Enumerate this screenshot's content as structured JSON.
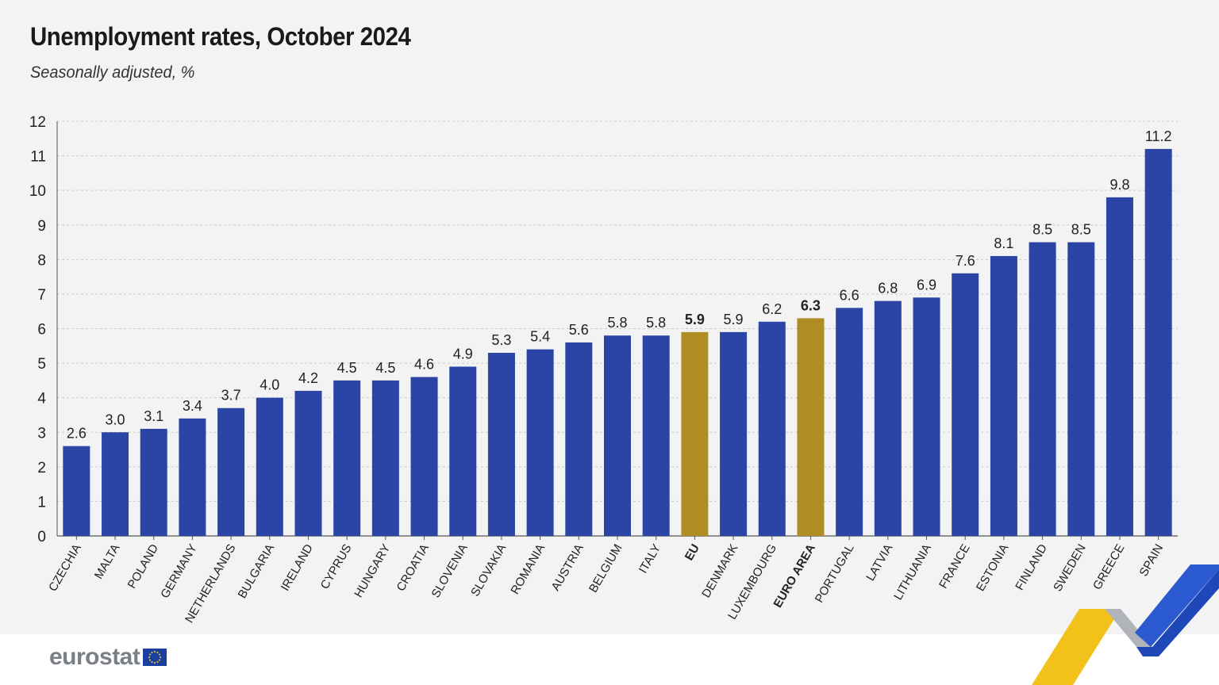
{
  "title": "Unemployment rates, October 2024",
  "subtitle": "Seasonally adjusted, %",
  "logo_text": "eurostat",
  "colors": {
    "bar": "#2a45a5",
    "highlight": "#b08d22",
    "grid": "#cccccc",
    "axis": "#555555",
    "text": "#222222"
  },
  "chart_data": {
    "type": "bar",
    "title": "Unemployment rates, October 2024",
    "subtitle": "Seasonally adjusted, %",
    "xlabel": "",
    "ylabel": "",
    "ylim": [
      0,
      12
    ],
    "yticks": [
      0,
      1,
      2,
      3,
      4,
      5,
      6,
      7,
      8,
      9,
      10,
      11,
      12
    ],
    "grid": true,
    "categories": [
      "CZECHIA",
      "MALTA",
      "POLAND",
      "GERMANY",
      "NETHERLANDS",
      "BULGARIA",
      "IRELAND",
      "CYPRUS",
      "HUNGARY",
      "CROATIA",
      "SLOVENIA",
      "SLOVAKIA",
      "ROMANIA",
      "AUSTRIA",
      "BELGIUM",
      "ITALY",
      "EU",
      "DENMARK",
      "LUXEMBOURG",
      "EURO AREA",
      "PORTUGAL",
      "LATVIA",
      "LITHUANIA",
      "FRANCE",
      "ESTONIA",
      "FINLAND",
      "SWEDEN",
      "GREECE",
      "SPAIN"
    ],
    "values": [
      2.6,
      3.0,
      3.1,
      3.4,
      3.7,
      4.0,
      4.2,
      4.5,
      4.5,
      4.6,
      4.9,
      5.3,
      5.4,
      5.6,
      5.8,
      5.8,
      5.9,
      5.9,
      6.2,
      6.3,
      6.6,
      6.8,
      6.9,
      7.6,
      8.1,
      8.5,
      8.5,
      9.8,
      11.2
    ],
    "value_labels": [
      "2.6",
      "3.0",
      "3.1",
      "3.4",
      "3.7",
      "4.0",
      "4.2",
      "4.5",
      "4.5",
      "4.6",
      "4.9",
      "5.3",
      "5.4",
      "5.6",
      "5.8",
      "5.8",
      "5.9",
      "5.9",
      "6.2",
      "6.3",
      "6.6",
      "6.8",
      "6.9",
      "7.6",
      "8.1",
      "8.5",
      "8.5",
      "9.8",
      "11.2"
    ],
    "highlighted": [
      "EU",
      "EURO AREA"
    ]
  }
}
